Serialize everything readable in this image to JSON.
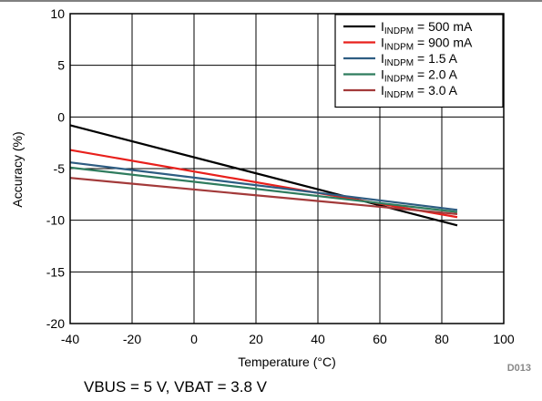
{
  "chart_data": {
    "type": "line",
    "xlabel": "Temperature (°C)",
    "ylabel": "Accuracy (%)",
    "xlim": [
      -40,
      100
    ],
    "ylim": [
      -20,
      10
    ],
    "x_ticks": [
      -40,
      -20,
      0,
      20,
      40,
      60,
      80,
      100
    ],
    "y_ticks": [
      -20,
      -15,
      -10,
      -5,
      0,
      5,
      10
    ],
    "grid": true,
    "legend_position": "top-right",
    "series": [
      {
        "name": "500 mA",
        "label_prefix": "I",
        "label_sub": "INDPM",
        "label_suffix": " = 500 mA",
        "color": "#000000",
        "x": [
          -40,
          85
        ],
        "y": [
          -0.8,
          -10.5
        ]
      },
      {
        "name": "900 mA",
        "label_prefix": "I",
        "label_sub": "INDPM",
        "label_suffix": " = 900 mA",
        "color": "#e8201c",
        "x": [
          -40,
          85
        ],
        "y": [
          -3.2,
          -9.7
        ]
      },
      {
        "name": "1.5 A",
        "label_prefix": "I",
        "label_sub": "INDPM",
        "label_suffix": " = 1.5 A",
        "color": "#2e5d82",
        "x": [
          -40,
          85
        ],
        "y": [
          -4.4,
          -9.0
        ]
      },
      {
        "name": "2.0 A",
        "label_prefix": "I",
        "label_sub": "INDPM",
        "label_suffix": " = 2.0 A",
        "color": "#2f7c5e",
        "x": [
          -40,
          85
        ],
        "y": [
          -4.9,
          -9.2
        ]
      },
      {
        "name": "3.0 A",
        "label_prefix": "I",
        "label_sub": "INDPM",
        "label_suffix": " = 3.0 A",
        "color": "#a33a3a",
        "x": [
          -40,
          85
        ],
        "y": [
          -5.9,
          -9.4
        ]
      }
    ]
  },
  "figure_code": "D013",
  "caption": "VBUS = 5 V, VBAT = 3.8 V"
}
